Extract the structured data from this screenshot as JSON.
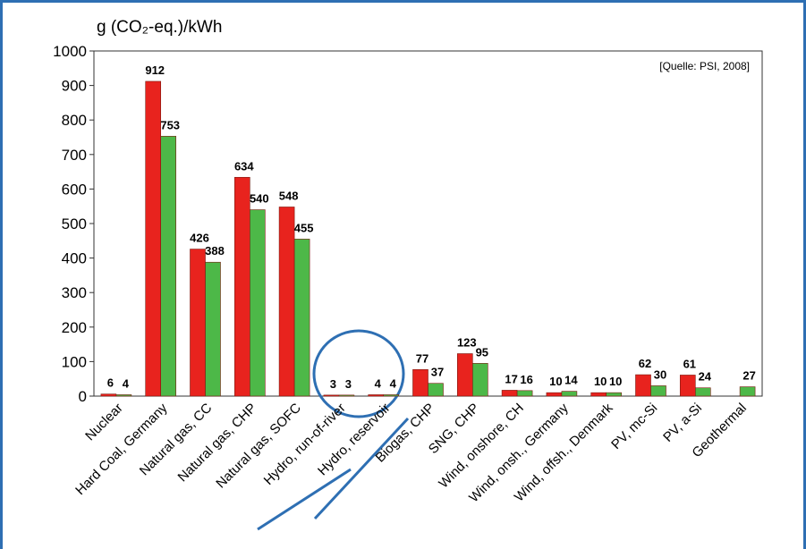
{
  "chart_data": {
    "type": "bar",
    "y_label": "g (CO₂-eq.)/kWh",
    "annotation": "[Quelle: PSI, 2008]",
    "categories": [
      "Nuclear",
      "Hard Coal, Germany",
      "Natural gas, CC",
      "Natural gas, CHP",
      "Natural gas, SOFC",
      "Hydro, run-of-river",
      "Hydro, reservoir",
      "Biogas, CHP",
      "SNG, CHP",
      "Wind, onshore, CH",
      "Wind, onsh., Germany",
      "Wind, offsh., Denmark",
      "PV, mc-Si",
      "PV, a-Si",
      "Geothermal"
    ],
    "series": [
      {
        "color": "#e8231e",
        "values": [
          6,
          912,
          426,
          634,
          548,
          3,
          4,
          77,
          123,
          17,
          10,
          10,
          62,
          61,
          null
        ]
      },
      {
        "color": "#4db848",
        "values": [
          4,
          753,
          388,
          540,
          455,
          3,
          4,
          37,
          95,
          16,
          14,
          10,
          30,
          24,
          27
        ]
      }
    ],
    "ylim": [
      0,
      1000
    ],
    "yticks": [
      0,
      100,
      200,
      300,
      400,
      500,
      600,
      700,
      800,
      900,
      1000
    ],
    "grid": false
  }
}
